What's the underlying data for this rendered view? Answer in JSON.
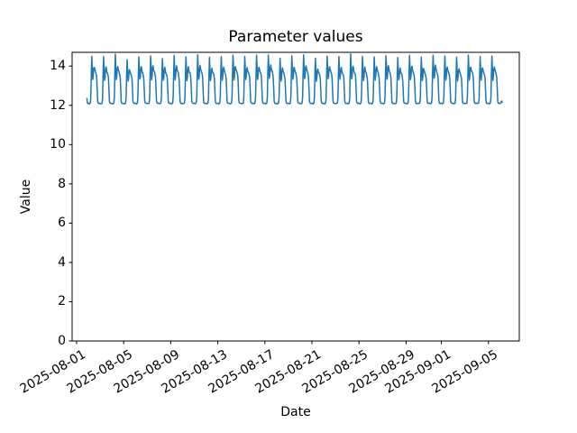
{
  "chart_data": {
    "type": "line",
    "title": "Parameter values",
    "xlabel": "Date",
    "ylabel": "Value",
    "legend": null,
    "grid": false,
    "line_color": "#1f77b4",
    "background_color": "#ffffff",
    "spine_color": "#000000",
    "ylim": [
      0,
      14.7
    ],
    "y_ticks": [
      0,
      2,
      4,
      6,
      8,
      10,
      12,
      14
    ],
    "xlim_day_offsets": [
      -0.38,
      37.62
    ],
    "x_ticks": [
      {
        "label": "2025-08-01",
        "day_offset": 0
      },
      {
        "label": "2025-08-05",
        "day_offset": 4
      },
      {
        "label": "2025-08-09",
        "day_offset": 8
      },
      {
        "label": "2025-08-13",
        "day_offset": 12
      },
      {
        "label": "2025-08-17",
        "day_offset": 16
      },
      {
        "label": "2025-08-21",
        "day_offset": 20
      },
      {
        "label": "2025-08-25",
        "day_offset": 24
      },
      {
        "label": "2025-08-29",
        "day_offset": 28
      },
      {
        "label": "2025-09-01",
        "day_offset": 31
      },
      {
        "label": "2025-09-05",
        "day_offset": 35
      }
    ],
    "series": {
      "name": "Parameter values",
      "start_date": "2025-08-02",
      "n_days": 35,
      "cadence": "hourly",
      "value_range_observed": [
        12.07,
        14.55
      ],
      "baseline": 12.1,
      "lead_start_day_offset": 0.875,
      "lead_hours": [
        12.35,
        12.15,
        12.1
      ],
      "daily_profile": [
        12.1,
        12.1,
        12.08,
        12.1,
        12.12,
        12.4,
        13.6,
        14.5,
        13.9,
        13.3,
        13.45,
        13.85,
        13.95,
        13.8,
        13.7,
        13.65,
        13.55,
        13.4,
        12.8,
        12.2,
        12.12,
        12.1,
        12.1,
        12.1
      ],
      "peak_jitter": [
        0.01,
        -0.02,
        0.03,
        -0.05,
        0.0,
        0.02,
        -0.03,
        0.01,
        -0.01,
        0.02,
        -0.04,
        0.0,
        0.03,
        -0.02,
        0.01,
        0.04,
        -0.03,
        0.0,
        0.02,
        -0.05,
        0.01,
        -0.01,
        0.03,
        -0.02,
        0.0,
        0.02,
        -0.04,
        0.01,
        -0.02,
        0.03,
        0.0,
        -0.03,
        0.02,
        -0.01,
        0.01
      ],
      "noise_amp": 0.05,
      "end_tail_hours": [
        12.1,
        12.13,
        12.2,
        12.22,
        12.15
      ]
    }
  }
}
